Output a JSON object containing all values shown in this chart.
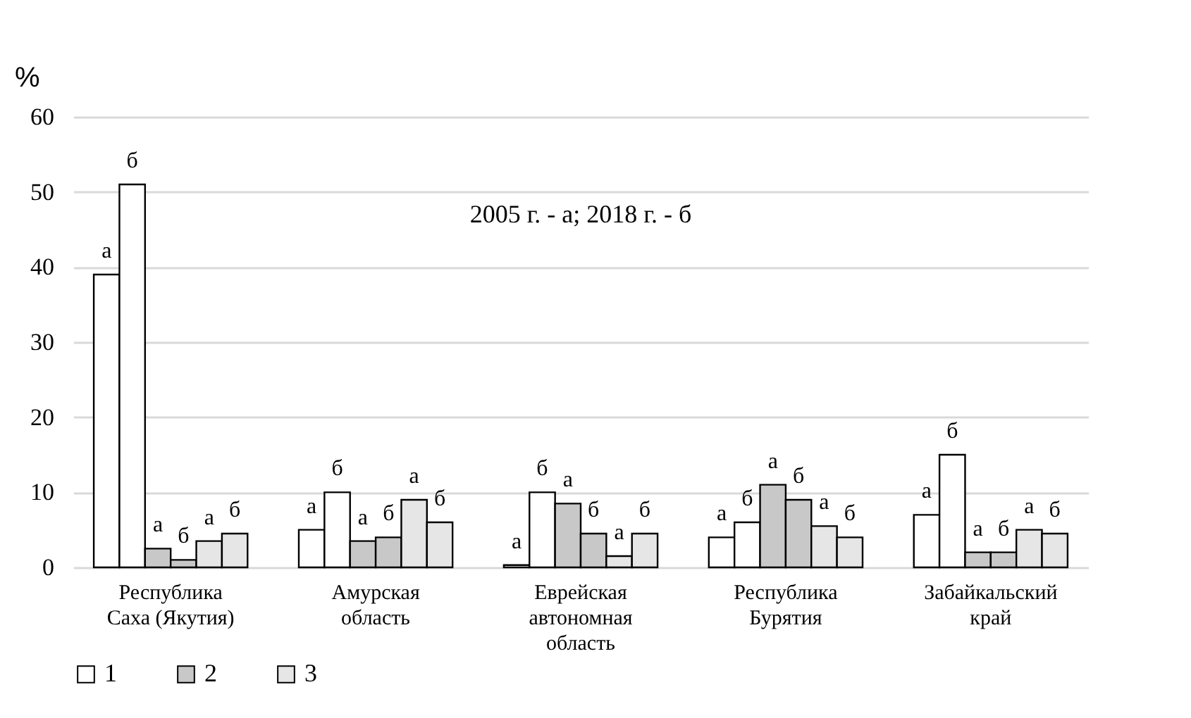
{
  "chart_data": {
    "type": "bar",
    "ylabel": "%",
    "categories": [
      "Республика Саха (Якутия)",
      "Амурская область",
      "Еврейская автономная область",
      "Республика Бурятия",
      "Забайкальский край"
    ],
    "series": [
      {
        "name": "1",
        "color": "#ffffff",
        "values": [
          39,
          5,
          0.3,
          4,
          7
        ],
        "value_labels": [
          "а",
          "а",
          "а",
          "а",
          "а"
        ]
      },
      {
        "color": "#ffffff",
        "values": [
          51,
          10,
          10,
          6,
          15
        ],
        "value_labels": [
          "б",
          "б",
          "б",
          "б",
          "б"
        ]
      },
      {
        "name": "2",
        "color": "#c8c8c8",
        "values": [
          2.5,
          3.5,
          8.5,
          11,
          2
        ],
        "value_labels": [
          "а",
          "а",
          "а",
          "а",
          "а"
        ]
      },
      {
        "color": "#c8c8c8",
        "values": [
          1,
          4,
          4.5,
          9,
          2
        ],
        "value_labels": [
          "б",
          "б",
          "б",
          "б",
          "б"
        ]
      },
      {
        "name": "3",
        "color": "#e6e6e6",
        "values": [
          3.5,
          9,
          1.5,
          5.5,
          5
        ],
        "value_labels": [
          "а",
          "а",
          "а",
          "а",
          "а"
        ]
      },
      {
        "color": "#e6e6e6",
        "values": [
          4.5,
          6,
          4.5,
          4,
          4.5
        ],
        "value_labels": [
          "б",
          "б",
          "б",
          "б",
          "б"
        ]
      }
    ],
    "ylim": [
      0,
      60
    ],
    "yticks": [
      0,
      10,
      20,
      30,
      40,
      50,
      60
    ],
    "grid": "y",
    "legend": "bottom",
    "annotations": [
      "2005 г. - а; 2018 г. - б"
    ]
  }
}
